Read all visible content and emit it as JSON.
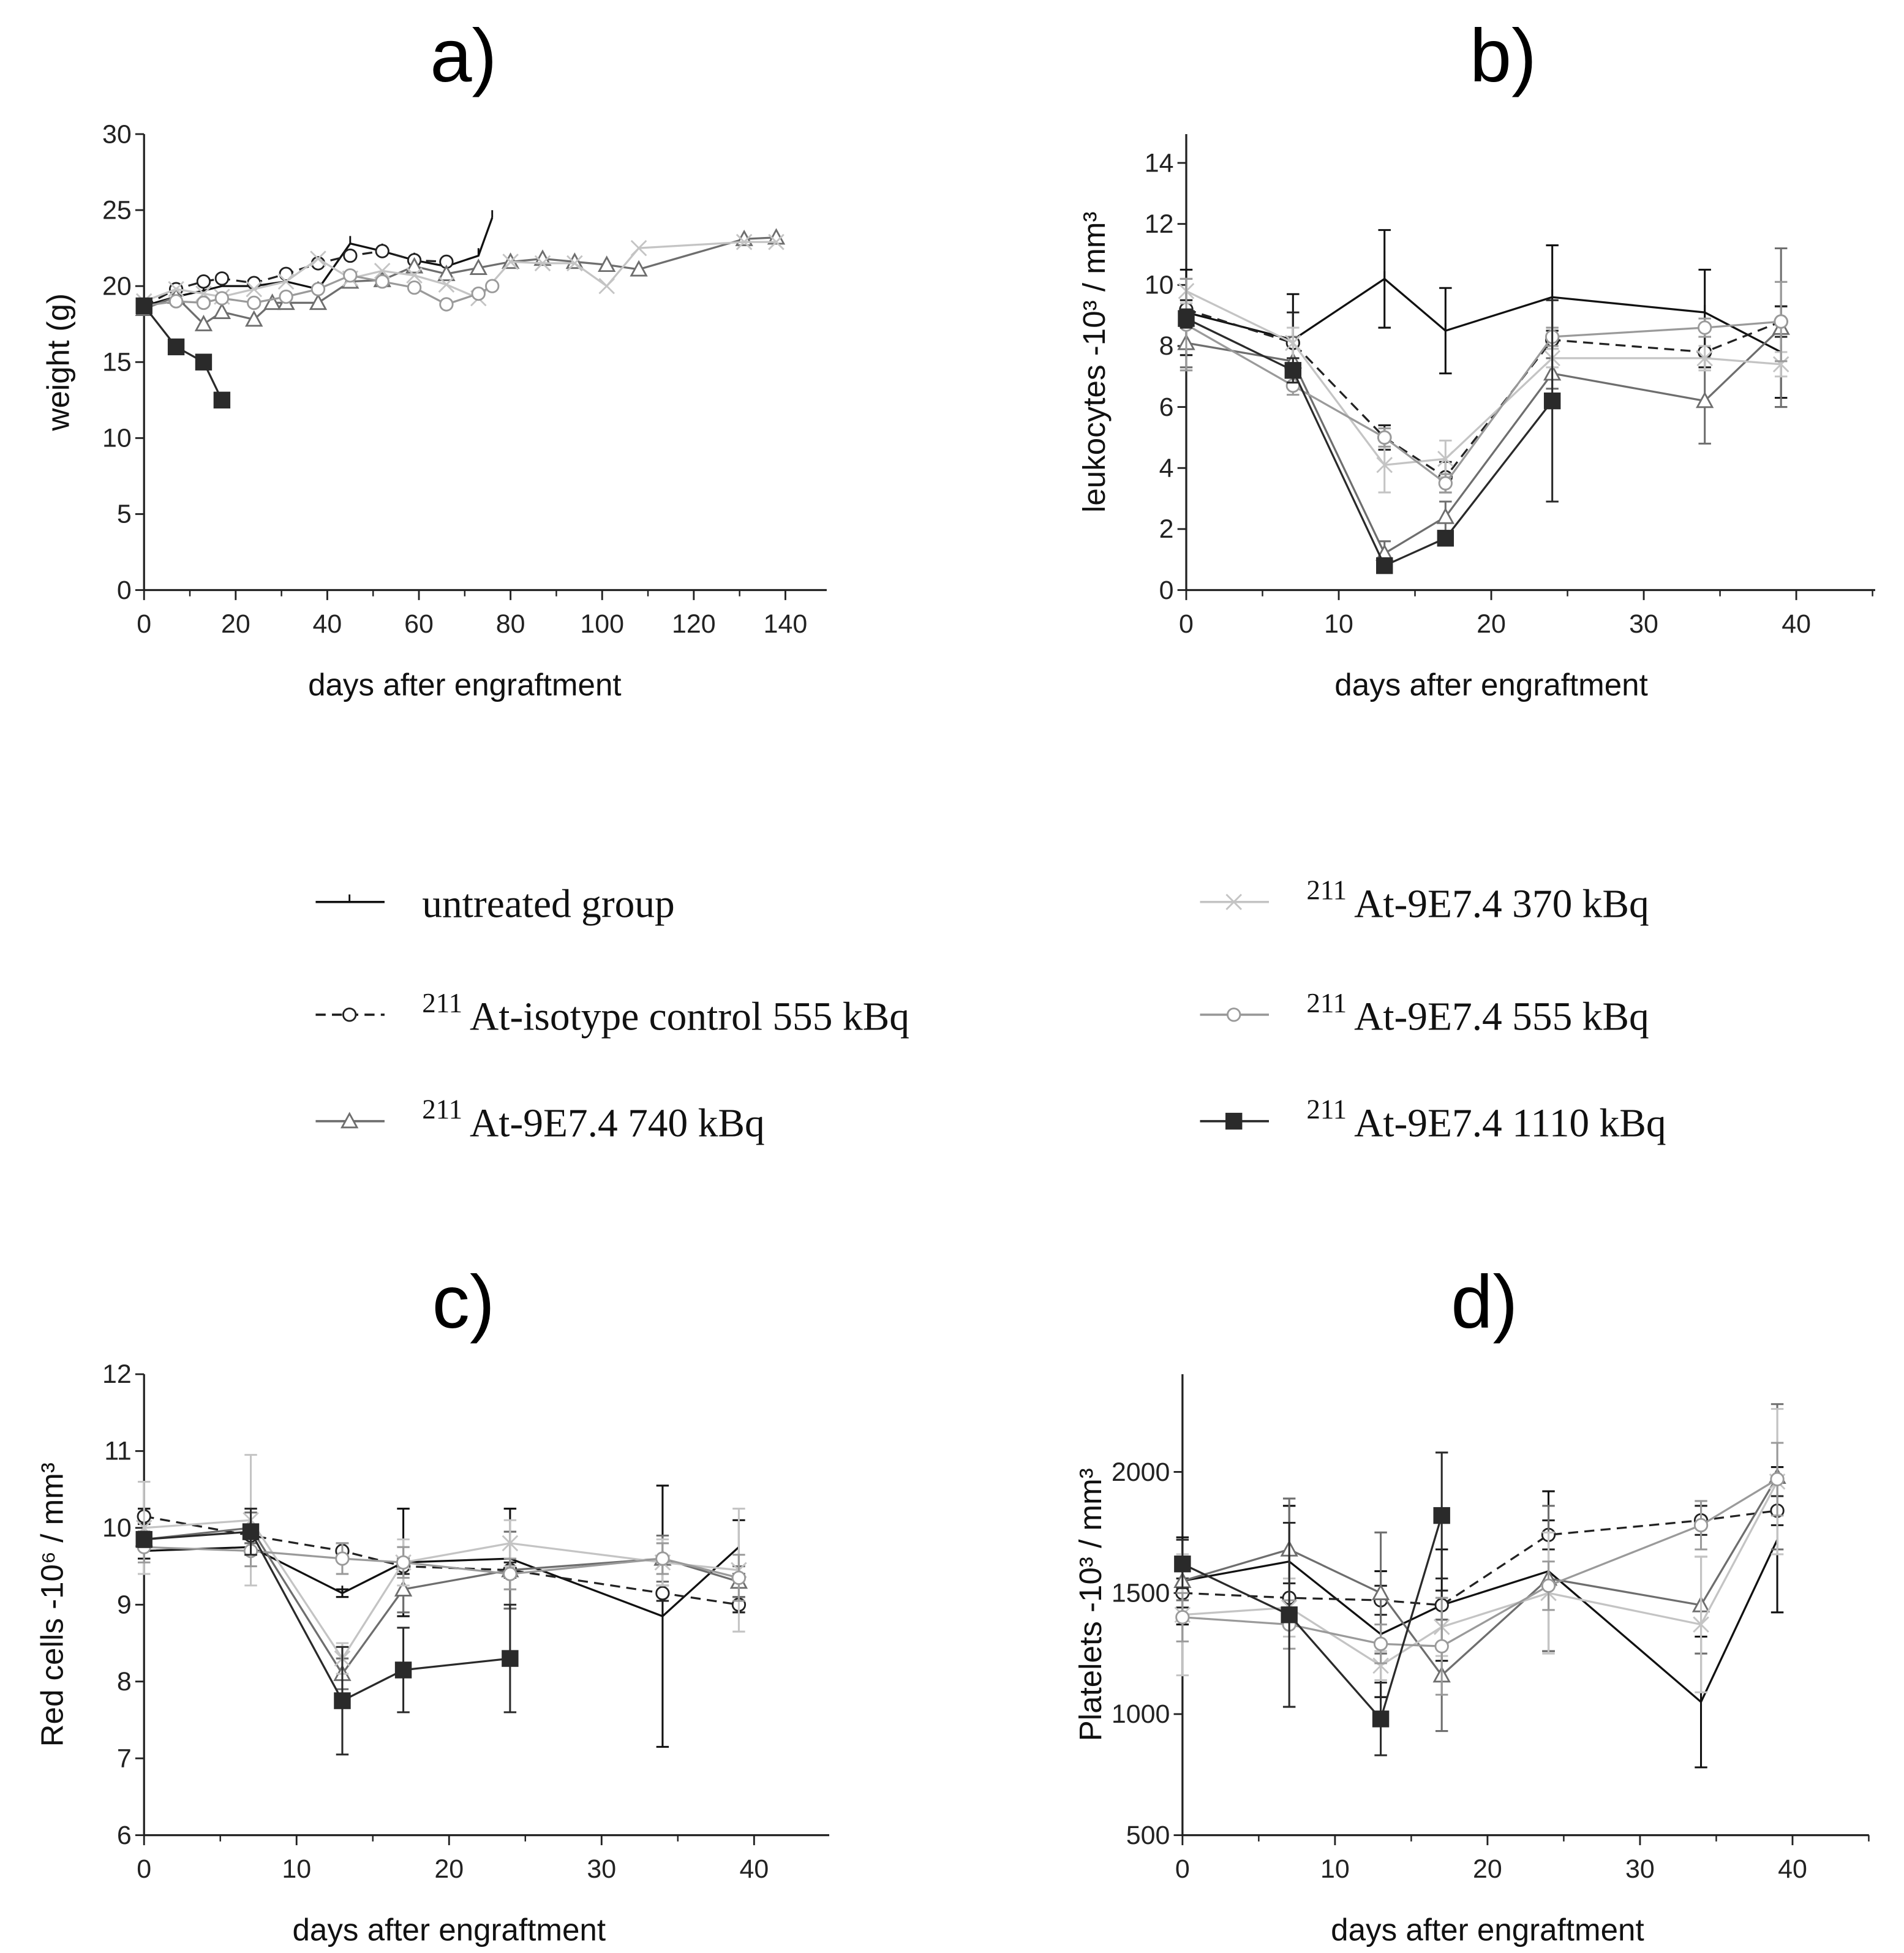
{
  "legend": [
    {
      "key": "untreated",
      "sup": "",
      "label": "untreated group",
      "color": "#111111",
      "dash": "",
      "marker": "tick"
    },
    {
      "key": "isotype",
      "sup": "211",
      "label": "At-isotype control 555 kBq",
      "color": "#222222",
      "dash": "8 5",
      "marker": "circle"
    },
    {
      "key": "a740",
      "sup": "211",
      "label": "At-9E7.4 740 kBq",
      "color": "#6e6e6e",
      "dash": "",
      "marker": "triangle"
    },
    {
      "key": "a370",
      "sup": "211",
      "label": "At-9E7.4 370 kBq",
      "color": "#c4c4c4",
      "dash": "",
      "marker": "x"
    },
    {
      "key": "a555",
      "sup": "211",
      "label": "At-9E7.4 555 kBq",
      "color": "#9a9a9a",
      "dash": "",
      "marker": "circle"
    },
    {
      "key": "a1110",
      "sup": "211",
      "label": "At-9E7.4 1110 kBq",
      "color": "#2a2a2a",
      "dash": "",
      "marker": "square"
    }
  ],
  "chart_data": [
    {
      "id": "a",
      "type": "line",
      "title": "a)",
      "xlabel": "days after engraftment",
      "ylabel": "weight (g)",
      "xlim": [
        0,
        150
      ],
      "ylim": [
        0,
        30
      ],
      "xticks": [
        0,
        20,
        40,
        60,
        80,
        100,
        120,
        140
      ],
      "yticks": [
        0,
        5,
        10,
        15,
        20,
        25,
        30
      ],
      "series": [
        {
          "key": "untreated",
          "x": [
            0,
            7,
            13,
            17,
            24,
            31,
            38,
            45,
            52,
            59,
            66,
            73,
            76
          ],
          "y": [
            18.7,
            19.3,
            19.7,
            20,
            20,
            20.3,
            19.8,
            22.8,
            22.3,
            21.7,
            21.3,
            22,
            24.5
          ]
        },
        {
          "key": "isotype",
          "x": [
            0,
            7,
            13,
            17,
            24,
            31,
            38,
            45,
            52,
            59,
            66
          ],
          "y": [
            18.7,
            19.8,
            20.3,
            20.5,
            20.2,
            20.8,
            21.5,
            22,
            22.3,
            21.7,
            21.6
          ]
        },
        {
          "key": "a740",
          "x": [
            0,
            7,
            13,
            17,
            24,
            28,
            31,
            38,
            45,
            52,
            59,
            66,
            73,
            80,
            87,
            94,
            101,
            108,
            131,
            138
          ],
          "y": [
            18.5,
            19.3,
            17.5,
            18.3,
            17.8,
            18.9,
            18.9,
            18.9,
            20.3,
            20.4,
            21.3,
            20.8,
            21.2,
            21.6,
            21.8,
            21.6,
            21.4,
            21.1,
            23.1,
            23.2
          ]
        },
        {
          "key": "a370",
          "x": [
            0,
            7,
            13,
            17,
            24,
            31,
            38,
            45,
            52,
            59,
            66,
            73,
            80,
            87,
            94,
            101,
            108,
            131,
            138
          ],
          "y": [
            19,
            19.8,
            19.5,
            19.3,
            19.8,
            20.3,
            21.8,
            20.5,
            21,
            20.7,
            20.1,
            19.2,
            21.6,
            21.5,
            21.5,
            20,
            22.5,
            22.9,
            22.9
          ]
        },
        {
          "key": "a555",
          "x": [
            0,
            7,
            13,
            17,
            24,
            31,
            38,
            45,
            52,
            59,
            66,
            73,
            76
          ],
          "y": [
            18.7,
            19,
            18.9,
            19.2,
            18.9,
            19.3,
            19.8,
            20.7,
            20.3,
            19.9,
            18.8,
            19.5,
            20
          ]
        },
        {
          "key": "a1110",
          "x": [
            0,
            7,
            13,
            17
          ],
          "y": [
            18.7,
            16,
            15,
            12.5
          ]
        }
      ]
    },
    {
      "id": "b",
      "type": "line",
      "title": "b)",
      "xlabel": "days after engraftment",
      "ylabel": "leukocytes -10³ / mm³",
      "xlim": [
        0,
        45
      ],
      "ylim": [
        0,
        15
      ],
      "xticks": [
        0,
        10,
        20,
        30,
        40
      ],
      "yticks": [
        0,
        2,
        4,
        6,
        8,
        10,
        12,
        14
      ],
      "series": [
        {
          "key": "untreated",
          "x": [
            0,
            7,
            13,
            17,
            24,
            34,
            39
          ],
          "y": [
            9.1,
            8.2,
            10.2,
            8.5,
            9.6,
            9.1,
            7.8
          ],
          "err": [
            1.4,
            1.5,
            1.6,
            1.4,
            1.7,
            1.4,
            1.5
          ]
        },
        {
          "key": "isotype",
          "x": [
            0,
            7,
            13,
            17,
            24,
            34,
            39
          ],
          "y": [
            9.2,
            8.1,
            5,
            3.7,
            8.2,
            7.8,
            8.8
          ],
          "err": [
            0.3,
            1,
            0.4,
            0.5,
            0.3,
            0.5,
            0.5
          ]
        },
        {
          "key": "a740",
          "x": [
            0,
            7,
            13,
            17,
            24,
            34,
            39
          ],
          "y": [
            8.1,
            7.5,
            1.2,
            2.4,
            7.1,
            6.2,
            8.6
          ],
          "err": [
            0.8,
            0.8,
            0.4,
            0.5,
            0.5,
            1.4,
            2.6
          ]
        },
        {
          "key": "a370",
          "x": [
            0,
            7,
            13,
            17,
            24,
            34,
            39
          ],
          "y": [
            9.8,
            8.1,
            4.1,
            4.3,
            7.6,
            7.6,
            7.4
          ],
          "err": [
            0.4,
            0.5,
            0.9,
            0.6,
            0.3,
            0.4,
            0.4
          ]
        },
        {
          "key": "a555",
          "x": [
            0,
            7,
            13,
            17,
            24,
            34,
            39
          ],
          "y": [
            8.7,
            6.7,
            5,
            3.5,
            8.3,
            8.6,
            8.8
          ],
          "err": [
            1.5,
            0.3,
            0.3,
            0.3,
            0.3,
            0.3,
            1.3
          ]
        },
        {
          "key": "a1110",
          "x": [
            0,
            7,
            13,
            17,
            24
          ],
          "y": [
            8.9,
            7.2,
            0.8,
            1.7,
            6.2
          ],
          "err": [
            0.3,
            0.4,
            0.2,
            0.2,
            3.3
          ]
        }
      ]
    },
    {
      "id": "c",
      "type": "line",
      "title": "c)",
      "xlabel": "days after engraftment",
      "ylabel": "Red cells -10⁶ / mm³",
      "xlim": [
        0,
        45
      ],
      "ylim": [
        6,
        12
      ],
      "xticks": [
        0,
        10,
        20,
        30,
        40
      ],
      "yticks": [
        6,
        7,
        8,
        9,
        10,
        11,
        12
      ],
      "series": [
        {
          "key": "untreated",
          "x": [
            0,
            7,
            13,
            17,
            24,
            34,
            39
          ],
          "y": [
            9.7,
            9.75,
            9.15,
            9.55,
            9.6,
            8.85,
            9.75
          ],
          "err": [
            0.1,
            0.1,
            0.05,
            0.7,
            0.65,
            1.7,
            0.35
          ]
        },
        {
          "key": "isotype",
          "x": [
            0,
            7,
            13,
            17,
            24,
            34,
            39
          ],
          "y": [
            10.15,
            9.9,
            9.7,
            9.5,
            9.45,
            9.15,
            9.0
          ],
          "err": [
            0.1,
            0.1,
            0.1,
            0.1,
            0.1,
            0.1,
            0.1
          ]
        },
        {
          "key": "a740",
          "x": [
            0,
            7,
            13,
            17,
            24,
            34,
            39
          ],
          "y": [
            9.85,
            10.0,
            8.1,
            9.2,
            9.45,
            9.6,
            9.3
          ],
          "err": [
            0.1,
            0.2,
            0.2,
            0.3,
            0.5,
            0.3,
            0.2
          ]
        },
        {
          "key": "a370",
          "x": [
            0,
            7,
            13,
            17,
            24,
            34,
            39
          ],
          "y": [
            10.0,
            10.1,
            8.3,
            9.55,
            9.8,
            9.55,
            9.45
          ],
          "err": [
            0.6,
            0.85,
            0.2,
            0.3,
            0.3,
            0.3,
            0.8
          ]
        },
        {
          "key": "a555",
          "x": [
            0,
            7,
            13,
            17,
            24,
            34,
            39
          ],
          "y": [
            9.75,
            9.7,
            9.6,
            9.55,
            9.4,
            9.6,
            9.35
          ],
          "err": [
            0.2,
            0.2,
            0.2,
            0.2,
            0.2,
            0.2,
            0.3
          ]
        },
        {
          "key": "a1110",
          "x": [
            0,
            7,
            13,
            17,
            24
          ],
          "y": [
            9.85,
            9.95,
            7.75,
            8.15,
            8.3
          ],
          "err": [
            0.1,
            0.3,
            0.7,
            0.55,
            0.7
          ]
        }
      ]
    },
    {
      "id": "d",
      "type": "line",
      "title": "d)",
      "xlabel": "days after engraftment",
      "ylabel": "Platelets -10³ / mm³",
      "xlim": [
        0,
        45
      ],
      "ylim": [
        500,
        2400
      ],
      "xticks": [
        0,
        10,
        20,
        30,
        40
      ],
      "yticks": [
        500,
        1000,
        1500,
        2000
      ],
      "series": [
        {
          "key": "untreated",
          "x": [
            0,
            7,
            13,
            17,
            24,
            34,
            39
          ],
          "y": [
            1550,
            1630,
            1330,
            1450,
            1590,
            1050,
            1720
          ],
          "err": [
            180,
            230,
            260,
            230,
            330,
            270,
            300
          ]
        },
        {
          "key": "isotype",
          "x": [
            0,
            7,
            13,
            17,
            24,
            34,
            39
          ],
          "y": [
            1500,
            1480,
            1470,
            1450,
            1740,
            1800,
            1840
          ],
          "err": [
            60,
            60,
            60,
            60,
            60,
            60,
            60
          ]
        },
        {
          "key": "a740",
          "x": [
            0,
            7,
            13,
            17,
            24,
            34,
            39
          ],
          "y": [
            1550,
            1680,
            1500,
            1160,
            1560,
            1450,
            1980
          ],
          "err": [
            80,
            210,
            250,
            230,
            300,
            200,
            300
          ]
        },
        {
          "key": "a370",
          "x": [
            0,
            7,
            13,
            17,
            24,
            34,
            39
          ],
          "y": [
            1410,
            1440,
            1200,
            1360,
            1500,
            1370,
            1960
          ],
          "err": [
            250,
            120,
            60,
            120,
            250,
            280,
            300
          ]
        },
        {
          "key": "a555",
          "x": [
            0,
            7,
            13,
            17,
            24,
            34,
            39
          ],
          "y": [
            1400,
            1370,
            1290,
            1280,
            1530,
            1780,
            1970
          ],
          "err": [
            100,
            100,
            80,
            200,
            100,
            100,
            150
          ]
        },
        {
          "key": "a1110",
          "x": [
            0,
            7,
            13,
            17
          ],
          "y": [
            1620,
            1410,
            980,
            1820
          ],
          "err": [
            100,
            380,
            150,
            260
          ]
        }
      ]
    }
  ]
}
